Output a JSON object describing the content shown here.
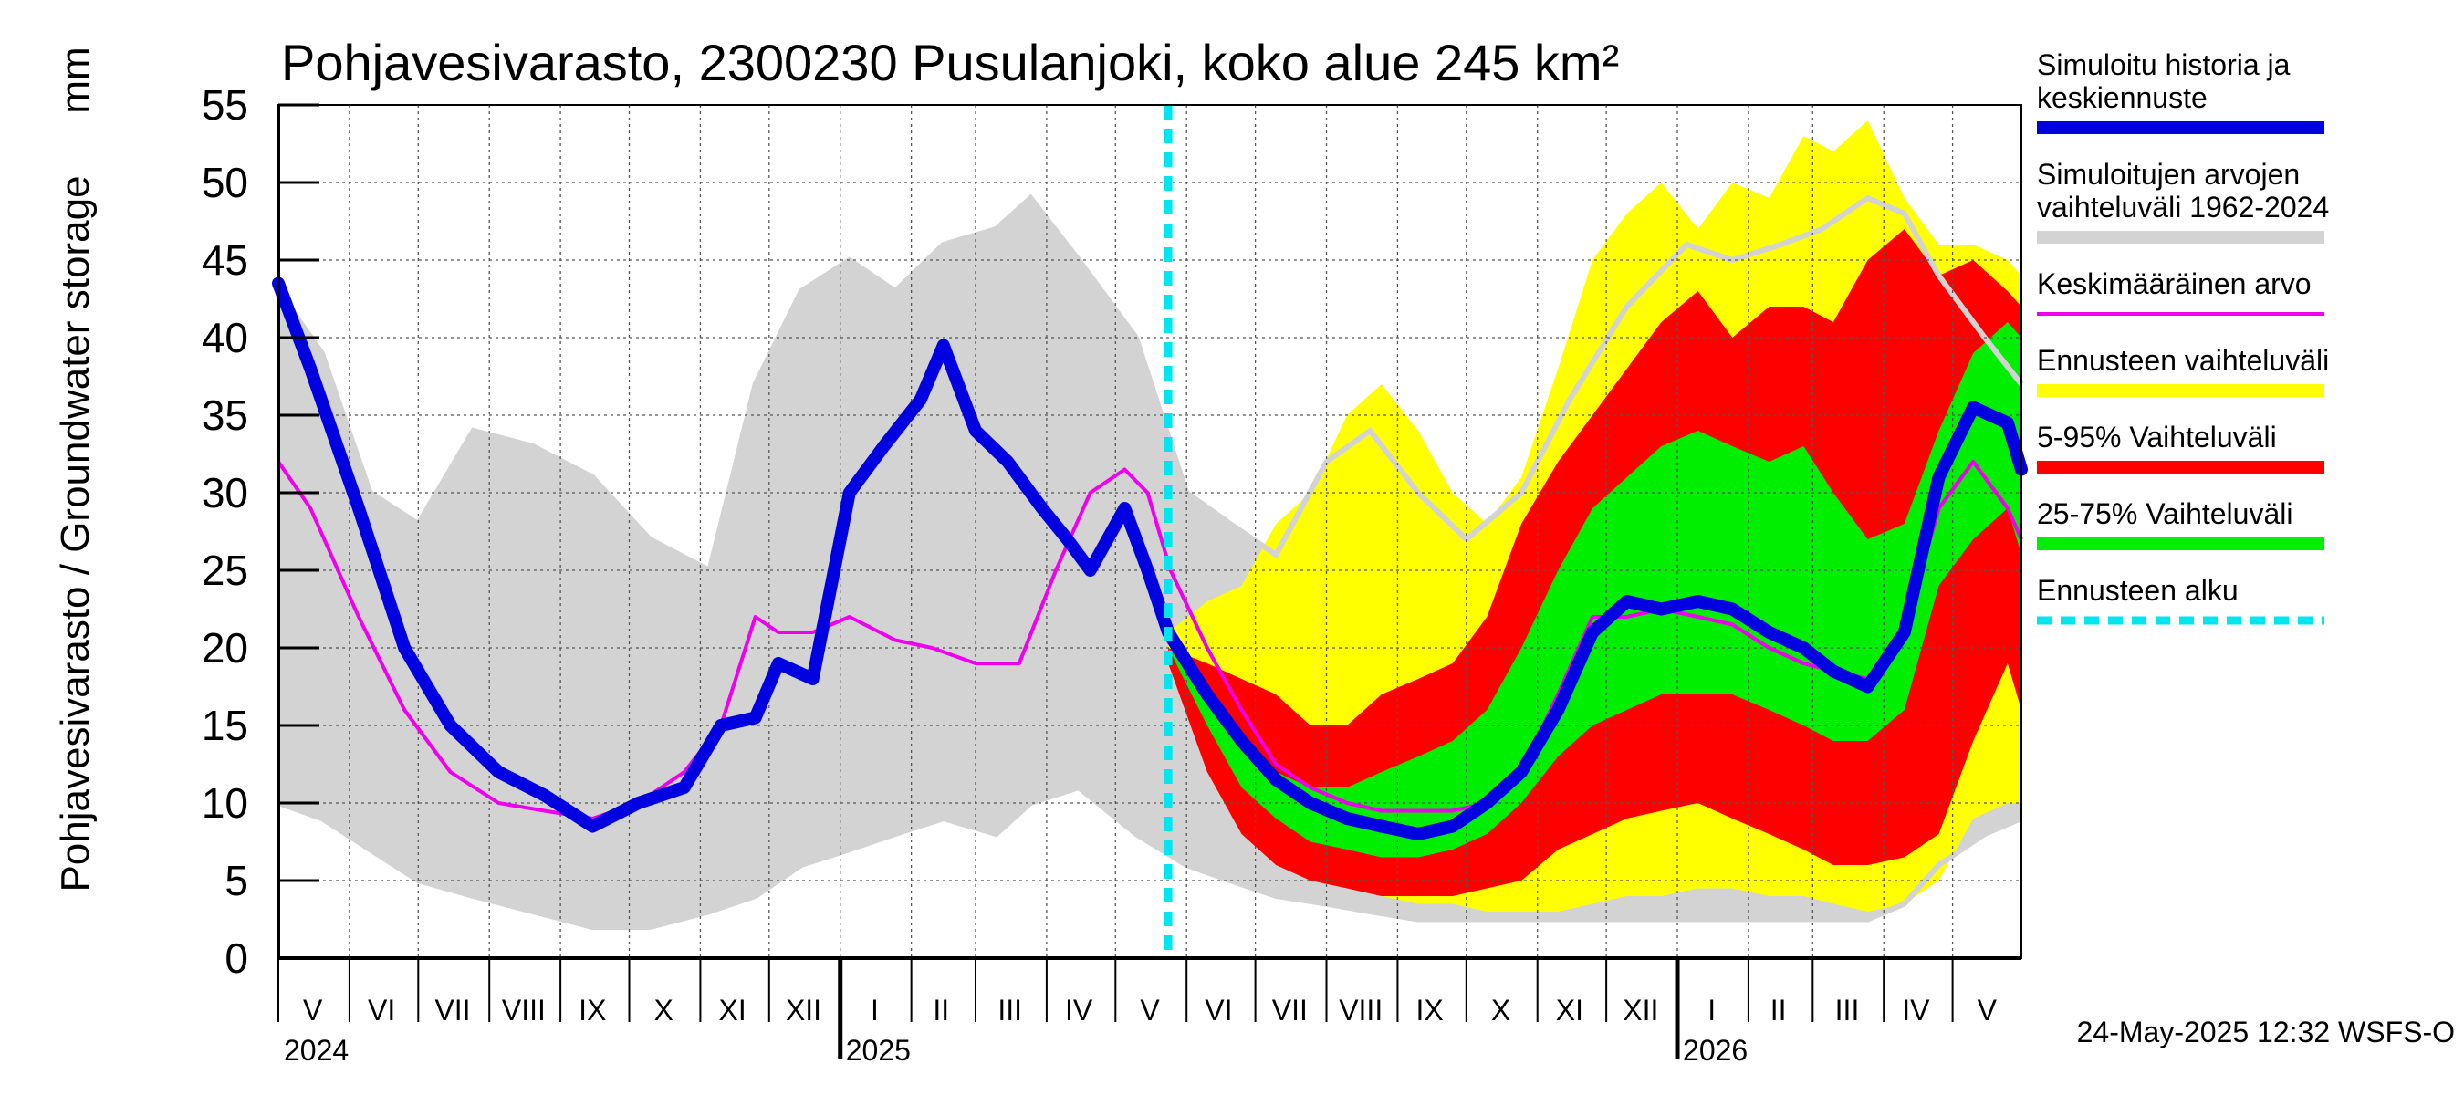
{
  "chart_data": {
    "type": "area",
    "title": "Pohjavesivarasto, 2300230 Pusulanjoki, koko alue 245 km²",
    "ylabel": "Pohjavesivarasto / Groundwater storage",
    "yunit": "mm",
    "ylim": [
      0,
      55
    ],
    "yticks": [
      0,
      5,
      10,
      15,
      20,
      25,
      30,
      35,
      40,
      45,
      50,
      55
    ],
    "xlim": [
      "2024-05-01",
      "2026-05-31"
    ],
    "grid": true,
    "legend_position": "right",
    "forecast_start": "2025-05-24",
    "footer": "24-May-2025 12:32 WSFS-O",
    "month_labels": [
      {
        "label": "V",
        "date": "2024-05-16"
      },
      {
        "label": "VI",
        "date": "2024-06-15"
      },
      {
        "label": "VII",
        "date": "2024-07-16"
      },
      {
        "label": "VIII",
        "date": "2024-08-16"
      },
      {
        "label": "IX",
        "date": "2024-09-15"
      },
      {
        "label": "X",
        "date": "2024-10-16"
      },
      {
        "label": "XI",
        "date": "2024-11-15"
      },
      {
        "label": "XII",
        "date": "2024-12-16"
      },
      {
        "label": "I",
        "date": "2025-01-16"
      },
      {
        "label": "II",
        "date": "2025-02-14"
      },
      {
        "label": "III",
        "date": "2025-03-16"
      },
      {
        "label": "IV",
        "date": "2025-04-15"
      },
      {
        "label": "V",
        "date": "2025-05-16"
      },
      {
        "label": "VI",
        "date": "2025-06-15"
      },
      {
        "label": "VII",
        "date": "2025-07-16"
      },
      {
        "label": "VIII",
        "date": "2025-08-16"
      },
      {
        "label": "IX",
        "date": "2025-09-15"
      },
      {
        "label": "X",
        "date": "2025-10-16"
      },
      {
        "label": "XI",
        "date": "2025-11-15"
      },
      {
        "label": "XII",
        "date": "2025-12-16"
      },
      {
        "label": "I",
        "date": "2026-01-16"
      },
      {
        "label": "II",
        "date": "2026-02-14"
      },
      {
        "label": "III",
        "date": "2026-03-16"
      },
      {
        "label": "IV",
        "date": "2026-04-15"
      },
      {
        "label": "V",
        "date": "2026-05-16"
      }
    ],
    "year_labels": [
      {
        "label": "2024",
        "date": "2024-05-01"
      },
      {
        "label": "2025",
        "date": "2025-01-01"
      },
      {
        "label": "2026",
        "date": "2026-01-01"
      }
    ],
    "legend": [
      {
        "key": "history",
        "label": "Simuloitu historia ja\nkeskiennuste",
        "color": "#0000e0",
        "style": "thick"
      },
      {
        "key": "range",
        "label": "Simuloitujen arvojen\nvaihteluväli 1962-2024",
        "color": "#d3d3d3",
        "style": "thick"
      },
      {
        "key": "mean",
        "label": "Keskimääräinen arvo",
        "color": "#ee00ee",
        "style": "thin"
      },
      {
        "key": "fc_range",
        "label": "Ennusteen vaihteluväli",
        "color": "#ffff00",
        "style": "thick"
      },
      {
        "key": "p5_95",
        "label": "5-95% Vaihteluväli",
        "color": "#ff0000",
        "style": "thick"
      },
      {
        "key": "p25_75",
        "label": "25-75% Vaihteluväli",
        "color": "#00ee00",
        "style": "thick"
      },
      {
        "key": "fc_start",
        "label": "Ennusteen alku",
        "color": "#00e5ee",
        "style": "dashed"
      }
    ],
    "series": [
      {
        "key": "range",
        "x": [
          "2024-05-01",
          "2024-05-20",
          "2024-06-10",
          "2024-07-01",
          "2024-07-25",
          "2024-08-20",
          "2024-09-15",
          "2024-10-10",
          "2024-11-05",
          "2024-11-25",
          "2024-12-15",
          "2025-01-05",
          "2025-01-25",
          "2025-02-15",
          "2025-03-10",
          "2025-03-25",
          "2025-04-15",
          "2025-05-10",
          "2025-06-01",
          "2025-06-20",
          "2025-07-10",
          "2025-08-01",
          "2025-08-20",
          "2025-09-10",
          "2025-10-01",
          "2025-10-25",
          "2025-11-15",
          "2025-12-10",
          "2026-01-05",
          "2026-01-25",
          "2026-02-15",
          "2026-03-05",
          "2026-03-25",
          "2026-04-10",
          "2026-04-25",
          "2026-05-15",
          "2026-05-31"
        ],
        "upper": [
          43,
          39,
          30,
          28,
          34,
          33,
          31,
          27,
          25,
          37,
          43,
          45,
          43,
          46,
          47,
          49,
          45,
          40,
          30,
          28,
          26,
          32,
          34,
          30,
          27,
          30,
          36,
          42,
          46,
          45,
          46,
          47,
          49,
          48,
          44,
          40,
          37
        ],
        "lower": [
          10,
          9,
          7,
          5,
          4,
          3,
          2,
          2,
          3,
          4,
          6,
          7,
          8,
          9,
          8,
          10,
          11,
          8,
          6,
          5,
          4,
          3.5,
          3,
          2.5,
          2.5,
          2.5,
          2.5,
          2.5,
          2.5,
          2.5,
          2.5,
          2.5,
          2.5,
          3.5,
          6,
          8,
          9
        ]
      },
      {
        "key": "fc_range",
        "x": [
          "2025-05-24",
          "2025-06-10",
          "2025-06-25",
          "2025-07-10",
          "2025-07-25",
          "2025-08-10",
          "2025-08-25",
          "2025-09-10",
          "2025-09-25",
          "2025-10-10",
          "2025-10-25",
          "2025-11-10",
          "2025-11-25",
          "2025-12-10",
          "2025-12-25",
          "2026-01-10",
          "2026-01-25",
          "2026-02-10",
          "2026-02-25",
          "2026-03-10",
          "2026-03-25",
          "2026-04-10",
          "2026-04-25",
          "2026-05-10",
          "2026-05-25",
          "2026-05-31"
        ],
        "upper": [
          21,
          23,
          24,
          28,
          30,
          35,
          37,
          34,
          30,
          28,
          31,
          38,
          45,
          48,
          50,
          47,
          50,
          49,
          53,
          52,
          54,
          49,
          46,
          46,
          45,
          44
        ],
        "lower": [
          20,
          14,
          10,
          7,
          6,
          5,
          4,
          3.5,
          3.5,
          3,
          3,
          3,
          3.5,
          4,
          4,
          4.5,
          4.5,
          4,
          4,
          3.5,
          3,
          3.5,
          5,
          9,
          10,
          10
        ]
      },
      {
        "key": "p5_95",
        "x": [
          "2025-05-24",
          "2025-06-10",
          "2025-06-25",
          "2025-07-10",
          "2025-07-25",
          "2025-08-10",
          "2025-08-25",
          "2025-09-10",
          "2025-09-25",
          "2025-10-10",
          "2025-10-25",
          "2025-11-10",
          "2025-11-25",
          "2025-12-10",
          "2025-12-25",
          "2026-01-10",
          "2026-01-25",
          "2026-02-10",
          "2026-02-25",
          "2026-03-10",
          "2026-03-25",
          "2026-04-10",
          "2026-04-25",
          "2026-05-10",
          "2026-05-25",
          "2026-05-31"
        ],
        "upper": [
          20,
          19,
          18,
          17,
          15,
          15,
          17,
          18,
          19,
          22,
          28,
          32,
          35,
          38,
          41,
          43,
          40,
          42,
          42,
          41,
          45,
          47,
          44,
          45,
          43,
          42
        ],
        "lower": [
          19,
          12,
          8,
          6,
          5,
          4.5,
          4,
          4,
          4,
          4.5,
          5,
          7,
          8,
          9,
          9.5,
          10,
          9,
          8,
          7,
          6,
          6,
          6.5,
          8,
          14,
          19,
          16
        ]
      },
      {
        "key": "p25_75",
        "x": [
          "2025-05-24",
          "2025-06-10",
          "2025-06-25",
          "2025-07-10",
          "2025-07-25",
          "2025-08-10",
          "2025-08-25",
          "2025-09-10",
          "2025-09-25",
          "2025-10-10",
          "2025-10-25",
          "2025-11-10",
          "2025-11-25",
          "2025-12-10",
          "2025-12-25",
          "2026-01-10",
          "2026-01-25",
          "2026-02-10",
          "2026-02-25",
          "2026-03-10",
          "2026-03-25",
          "2026-04-10",
          "2026-04-25",
          "2026-05-10",
          "2026-05-25",
          "2026-05-31"
        ],
        "upper": [
          20,
          17,
          14,
          12,
          11,
          11,
          12,
          13,
          14,
          16,
          20,
          25,
          29,
          31,
          33,
          34,
          33,
          32,
          33,
          30,
          27,
          28,
          34,
          39,
          41,
          40
        ],
        "lower": [
          20,
          15,
          11,
          9,
          7.5,
          7,
          6.5,
          6.5,
          7,
          8,
          10,
          13,
          15,
          16,
          17,
          17,
          17,
          16,
          15,
          14,
          14,
          16,
          24,
          27,
          29,
          26
        ]
      },
      {
        "key": "mean",
        "x": [
          "2024-05-01",
          "2024-05-15",
          "2024-06-05",
          "2024-06-25",
          "2024-07-15",
          "2024-08-05",
          "2024-08-25",
          "2024-09-15",
          "2024-10-05",
          "2024-10-25",
          "2024-11-10",
          "2024-11-25",
          "2024-12-05",
          "2024-12-20",
          "2025-01-05",
          "2025-01-25",
          "2025-02-10",
          "2025-03-01",
          "2025-03-20",
          "2025-04-05",
          "2025-04-20",
          "2025-05-05",
          "2025-05-15",
          "2025-05-25",
          "2025-06-10",
          "2025-06-25",
          "2025-07-10",
          "2025-07-25",
          "2025-08-10",
          "2025-08-25",
          "2025-09-10",
          "2025-09-25",
          "2025-10-10",
          "2025-10-25",
          "2025-11-10",
          "2025-11-25",
          "2025-12-10",
          "2025-12-25",
          "2026-01-10",
          "2026-01-25",
          "2026-02-10",
          "2026-02-25",
          "2026-03-10",
          "2026-03-25",
          "2026-04-10",
          "2026-04-25",
          "2026-05-10",
          "2026-05-25",
          "2026-05-31"
        ],
        "values": [
          32,
          29,
          22,
          16,
          12,
          10,
          9.5,
          9,
          10,
          12,
          15,
          22,
          21,
          21,
          22,
          20.5,
          20,
          19,
          19,
          25,
          30,
          31.5,
          30,
          25,
          20,
          16,
          12.5,
          11,
          10,
          9.5,
          9.5,
          9.5,
          10,
          12,
          17,
          22,
          22,
          22.5,
          22,
          21.5,
          20,
          19,
          18.5,
          18,
          21,
          29,
          32,
          29,
          27
        ]
      },
      {
        "key": "history",
        "x": [
          "2024-05-01",
          "2024-05-15",
          "2024-06-05",
          "2024-06-25",
          "2024-07-15",
          "2024-08-05",
          "2024-08-25",
          "2024-09-15",
          "2024-10-05",
          "2024-10-25",
          "2024-11-10",
          "2024-11-25",
          "2024-12-05",
          "2024-12-20",
          "2025-01-05",
          "2025-01-20",
          "2025-02-05",
          "2025-02-15",
          "2025-03-01",
          "2025-03-15",
          "2025-03-30",
          "2025-04-10",
          "2025-04-20",
          "2025-05-05",
          "2025-05-15",
          "2025-05-24",
          "2025-06-10",
          "2025-06-25",
          "2025-07-10",
          "2025-07-25",
          "2025-08-10",
          "2025-08-25",
          "2025-09-10",
          "2025-09-25",
          "2025-10-10",
          "2025-10-25",
          "2025-11-10",
          "2025-11-25",
          "2025-12-10",
          "2025-12-25",
          "2026-01-10",
          "2026-01-25",
          "2026-02-10",
          "2026-02-25",
          "2026-03-10",
          "2026-03-25",
          "2026-04-10",
          "2026-04-25",
          "2026-05-10",
          "2026-05-25",
          "2026-05-31"
        ],
        "values": [
          43.5,
          38,
          29,
          20,
          15,
          12,
          10.5,
          8.5,
          10,
          11,
          15,
          15.5,
          19,
          18,
          30,
          33,
          36,
          39.5,
          34,
          32,
          29,
          27,
          25,
          29,
          25,
          21,
          17,
          14,
          11.5,
          10,
          9,
          8.5,
          8,
          8.5,
          10,
          12,
          16,
          21,
          23,
          22.5,
          23,
          22.5,
          21,
          20,
          18.5,
          17.5,
          21,
          31,
          35.5,
          34.5,
          31.5
        ]
      }
    ]
  }
}
